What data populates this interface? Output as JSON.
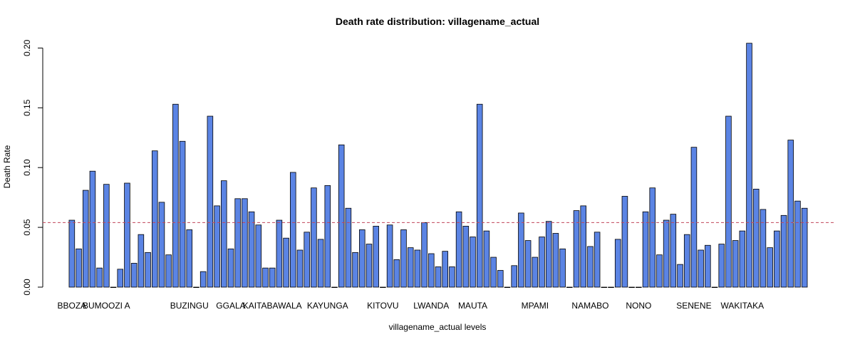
{
  "chart_data": {
    "type": "bar",
    "title": "Death rate distribution: villagename_actual",
    "xlabel": "villagename_actual levels",
    "ylabel": "Death Rate",
    "ylim": [
      0,
      0.205
    ],
    "yticks": [
      0.0,
      0.05,
      0.1,
      0.15,
      0.2
    ],
    "ytick_labels": [
      "0.00",
      "0.05",
      "0.10",
      "0.15",
      "0.20"
    ],
    "reference_line": 0.054,
    "grid": false,
    "colors": {
      "bar": "#5b84e4",
      "reference": "#c0455a"
    },
    "labeled_categories": [
      {
        "label": "BBOZA",
        "index": 0
      },
      {
        "label": "BUMOOZI A",
        "index": 5
      },
      {
        "label": "BUZINGU",
        "index": 17
      },
      {
        "label": "GGALA",
        "index": 23
      },
      {
        "label": "KAITABAWALA",
        "index": 29
      },
      {
        "label": "KAYUNGA",
        "index": 37
      },
      {
        "label": "KITOVU",
        "index": 45
      },
      {
        "label": "LWANDA",
        "index": 52
      },
      {
        "label": "MAUTA",
        "index": 58
      },
      {
        "label": "MPAMI",
        "index": 67
      },
      {
        "label": "NAMABO",
        "index": 75
      },
      {
        "label": "NONO",
        "index": 82
      },
      {
        "label": "SENENE",
        "index": 90
      },
      {
        "label": "WAKITAKA",
        "index": 97
      }
    ],
    "values": [
      0.056,
      0.032,
      0.081,
      0.097,
      0.016,
      0.086,
      0.0,
      0.015,
      0.087,
      0.02,
      0.044,
      0.029,
      0.114,
      0.071,
      0.027,
      0.153,
      0.122,
      0.048,
      0.0,
      0.013,
      0.143,
      0.068,
      0.089,
      0.032,
      0.074,
      0.074,
      0.063,
      0.052,
      0.016,
      0.016,
      0.056,
      0.041,
      0.096,
      0.031,
      0.046,
      0.083,
      0.04,
      0.085,
      0.0,
      0.119,
      0.066,
      0.029,
      0.048,
      0.036,
      0.051,
      0.0,
      0.052,
      0.023,
      0.048,
      0.033,
      0.031,
      0.054,
      0.028,
      0.017,
      0.03,
      0.017,
      0.063,
      0.051,
      0.042,
      0.153,
      0.047,
      0.025,
      0.014,
      0.0,
      0.018,
      0.062,
      0.039,
      0.025,
      0.042,
      0.055,
      0.045,
      0.032,
      0.0,
      0.064,
      0.068,
      0.034,
      0.046,
      0.0,
      0.0,
      0.04,
      0.076,
      0.0,
      0.0,
      0.063,
      0.083,
      0.027,
      0.056,
      0.061,
      0.019,
      0.044,
      0.117,
      0.031,
      0.035,
      0.0,
      0.036,
      0.143,
      0.039,
      0.047,
      0.204,
      0.082,
      0.065,
      0.033,
      0.047,
      0.06,
      0.123,
      0.072,
      0.066
    ]
  }
}
